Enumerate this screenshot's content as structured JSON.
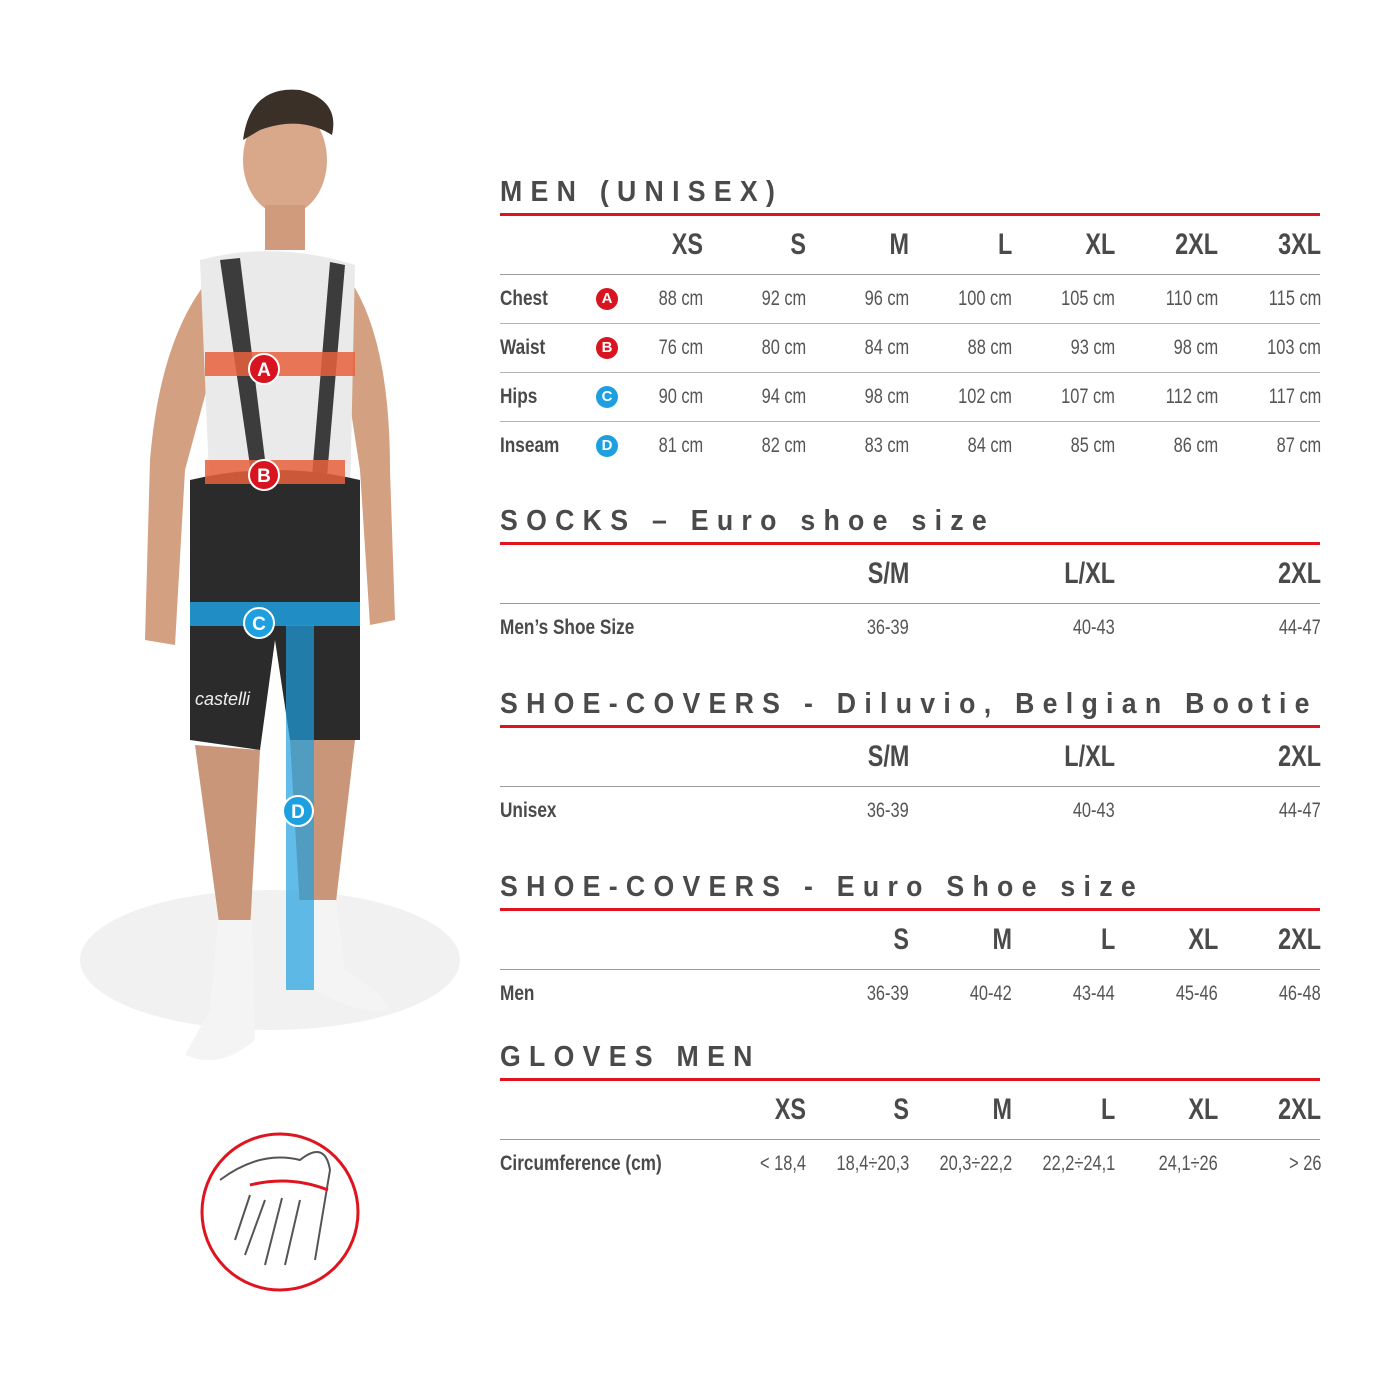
{
  "colors": {
    "accent_red": "#e0141e",
    "marker_red": "#d7141f",
    "marker_blue": "#1ea0e0",
    "text": "#4a4a4a"
  },
  "figure": {
    "markers": [
      "A",
      "B",
      "C",
      "D"
    ],
    "brand_text": "castelli",
    "wrist_icon": "hand-wrist-measure-icon"
  },
  "men": {
    "title": "MEN (UNISEX)",
    "sizes": [
      "XS",
      "S",
      "M",
      "L",
      "XL",
      "2XL",
      "3XL"
    ],
    "rows": [
      {
        "label": "Chest",
        "marker": "A",
        "values": [
          "88 cm",
          "92 cm",
          "96 cm",
          "100 cm",
          "105 cm",
          "110 cm",
          "115 cm"
        ]
      },
      {
        "label": "Waist",
        "marker": "B",
        "values": [
          "76 cm",
          "80 cm",
          "84 cm",
          "88 cm",
          "93 cm",
          "98 cm",
          "103 cm"
        ]
      },
      {
        "label": "Hips",
        "marker": "C",
        "values": [
          "90 cm",
          "94 cm",
          "98 cm",
          "102 cm",
          "107 cm",
          "112 cm",
          "117 cm"
        ]
      },
      {
        "label": "Inseam",
        "marker": "D",
        "values": [
          "81 cm",
          "82 cm",
          "83 cm",
          "84 cm",
          "85 cm",
          "86 cm",
          "87 cm"
        ]
      }
    ]
  },
  "socks": {
    "title": "SOCKS – Euro shoe size",
    "sizes": [
      "S/M",
      "L/XL",
      "2XL"
    ],
    "rows": [
      {
        "label": "Men’s Shoe Size",
        "values": [
          "36-39",
          "40-43",
          "44-47"
        ]
      }
    ]
  },
  "shoecovers_diluvio": {
    "title": "SHOE-COVERS - Diluvio, Belgian Bootie",
    "sizes": [
      "S/M",
      "L/XL",
      "2XL"
    ],
    "rows": [
      {
        "label": "Unisex",
        "values": [
          "36-39",
          "40-43",
          "44-47"
        ]
      }
    ]
  },
  "shoecovers_euro": {
    "title": "SHOE-COVERS - Euro Shoe size",
    "sizes": [
      "S",
      "M",
      "L",
      "XL",
      "2XL"
    ],
    "rows": [
      {
        "label": "Men",
        "values": [
          "36-39",
          "40-42",
          "43-44",
          "45-46",
          "46-48"
        ]
      }
    ]
  },
  "gloves": {
    "title": "GLOVES MEN",
    "sizes": [
      "XS",
      "S",
      "M",
      "L",
      "XL",
      "2XL"
    ],
    "rows": [
      {
        "label": "Circumference (cm)",
        "values": [
          "< 18,4",
          "18,4÷20,3",
          "20,3÷22,2",
          "22,2÷24,1",
          "24,1÷26",
          "> 26"
        ]
      }
    ]
  }
}
